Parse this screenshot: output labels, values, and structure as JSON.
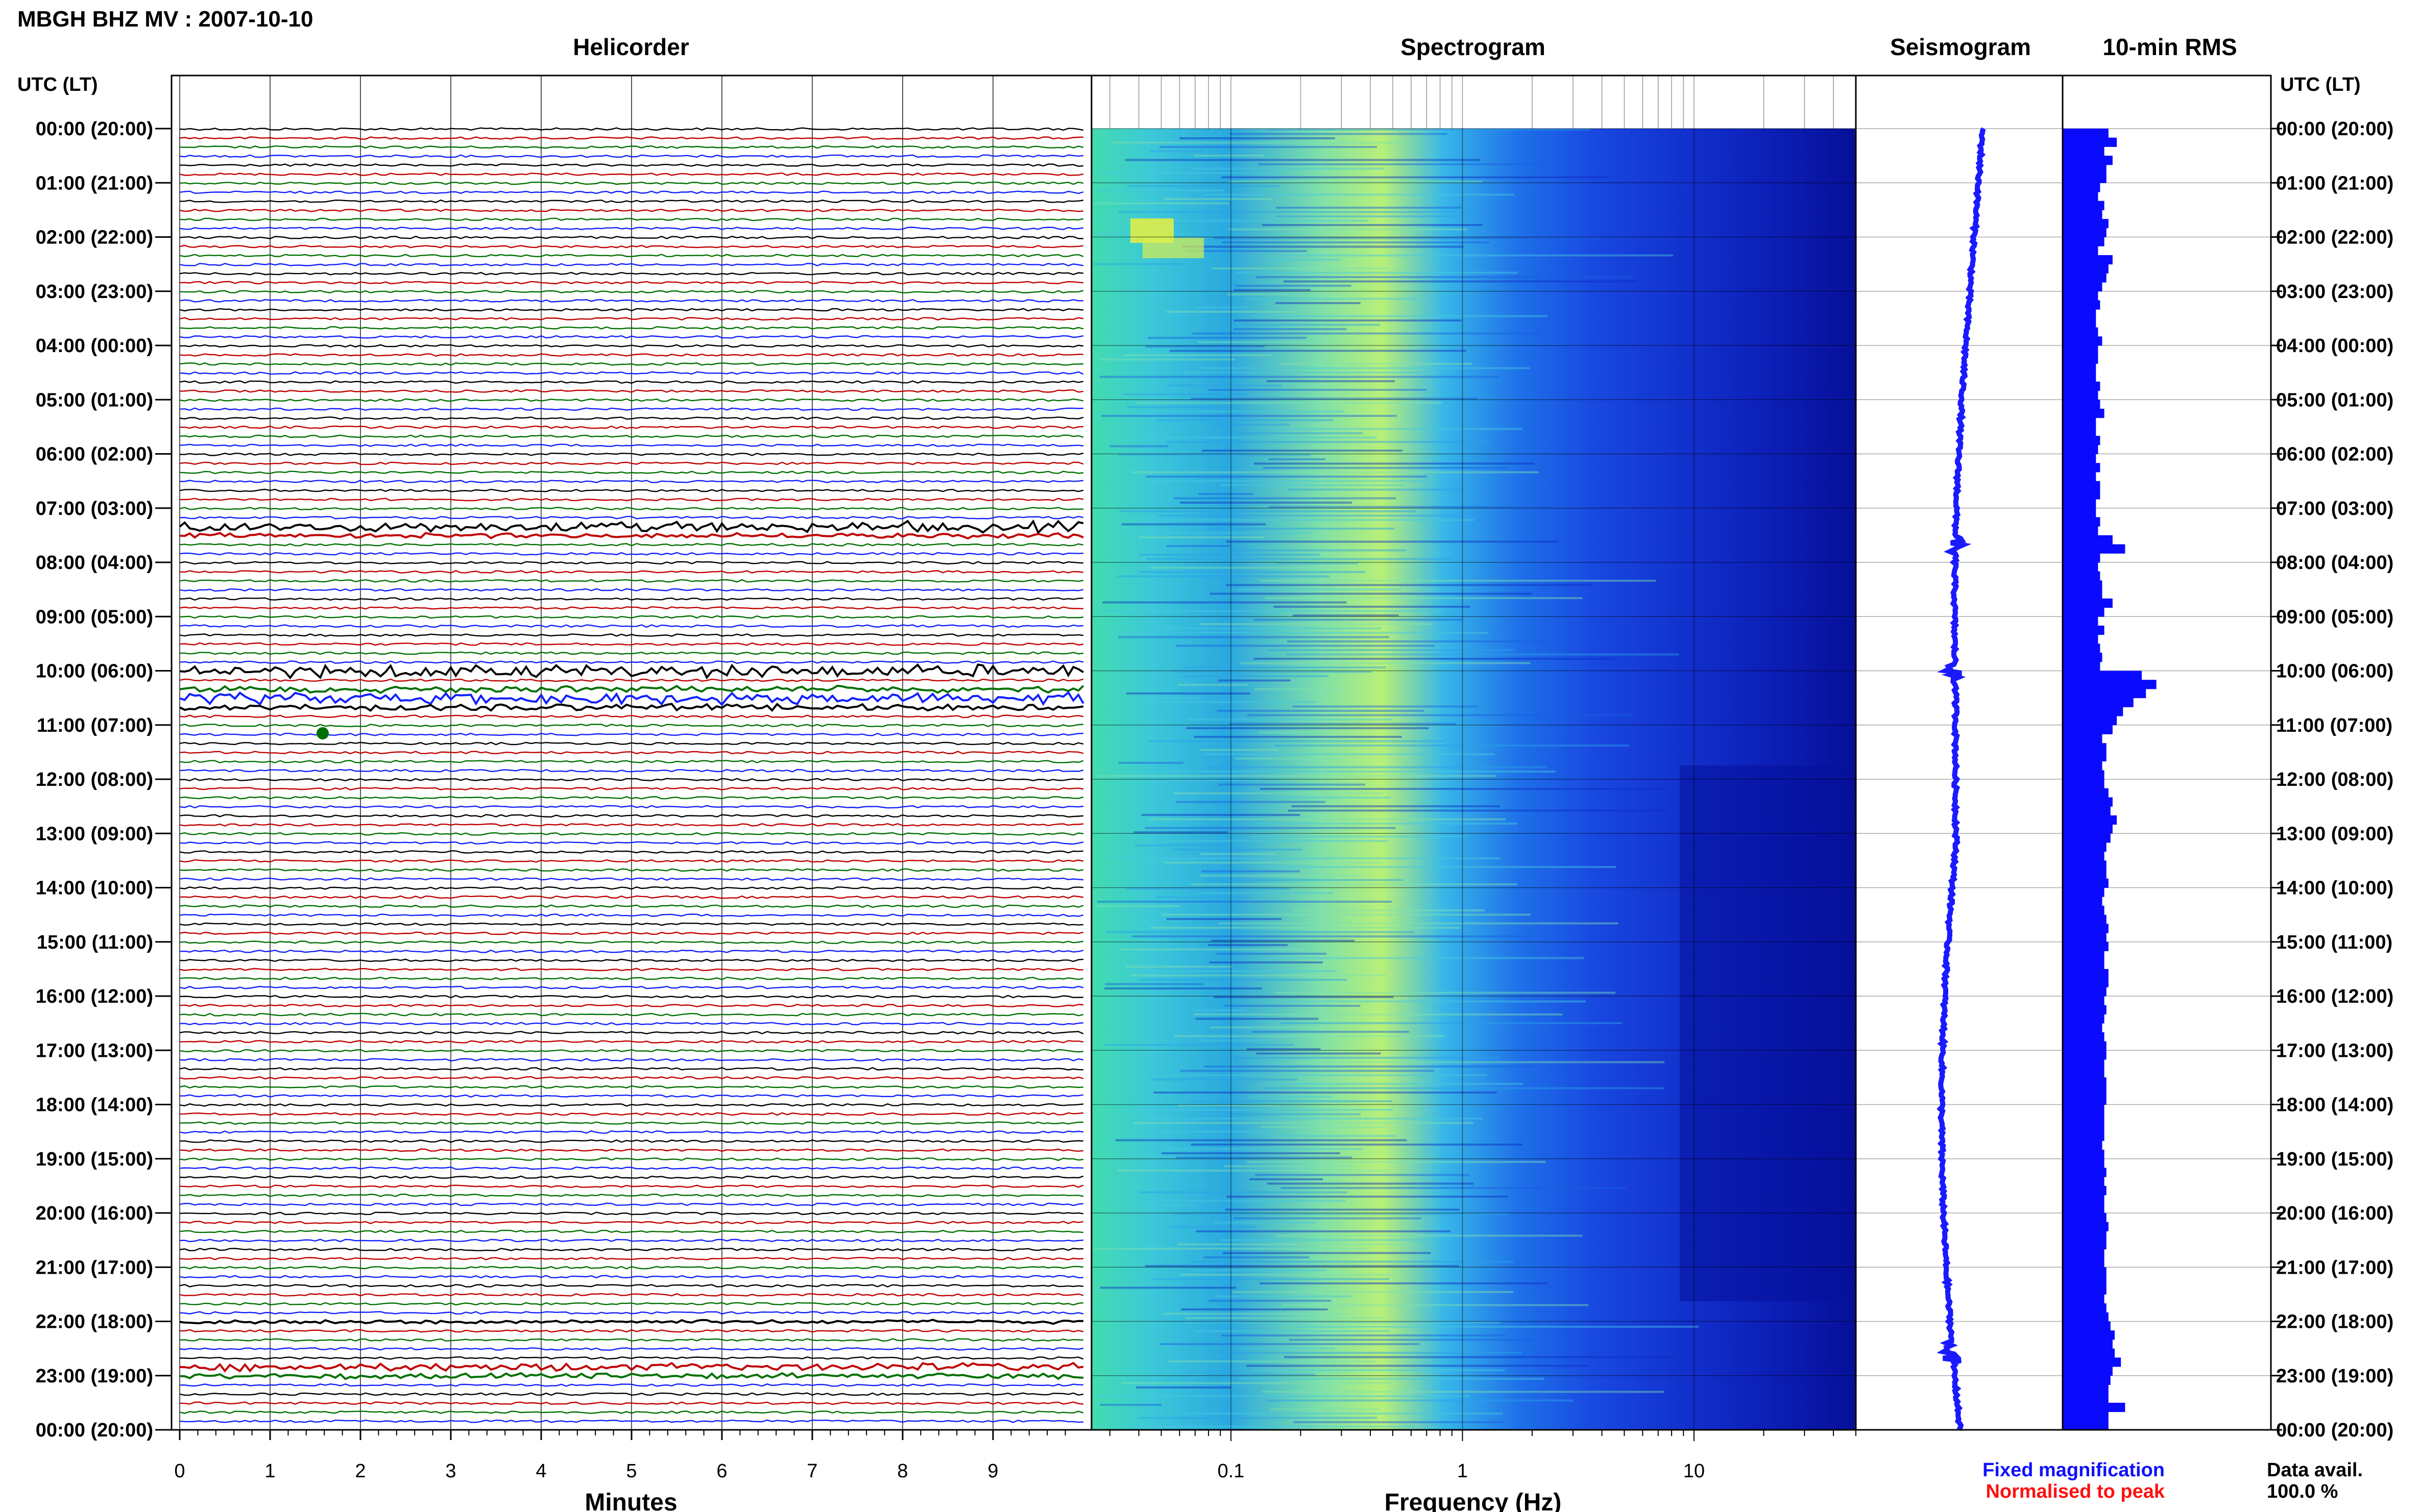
{
  "header": {
    "station_title": "MBGH BHZ MV : 2007-10-10",
    "utc_label_left": "UTC (LT)",
    "utc_label_right": "UTC (LT)"
  },
  "panels": {
    "helicorder": "Helicorder",
    "spectrogram": "Spectrogram",
    "seismogram": "Seismogram",
    "rms": "10-min RMS"
  },
  "axes": {
    "minutes_label": "Minutes",
    "minutes_ticks": [
      "0",
      "1",
      "2",
      "3",
      "4",
      "5",
      "6",
      "7",
      "8",
      "9"
    ],
    "freq_label": "Frequency (Hz)",
    "freq_ticks": [
      "0.1",
      "1",
      "10"
    ]
  },
  "hour_labels": [
    "00:00 (20:00)",
    "01:00 (21:00)",
    "02:00 (22:00)",
    "03:00 (23:00)",
    "04:00 (00:00)",
    "05:00 (01:00)",
    "06:00 (02:00)",
    "07:00 (03:00)",
    "08:00 (04:00)",
    "09:00 (05:00)",
    "10:00 (06:00)",
    "11:00 (07:00)",
    "12:00 (08:00)",
    "13:00 (09:00)",
    "14:00 (10:00)",
    "15:00 (11:00)",
    "16:00 (12:00)",
    "17:00 (13:00)",
    "18:00 (14:00)",
    "19:00 (15:00)",
    "20:00 (16:00)",
    "21:00 (17:00)",
    "22:00 (18:00)",
    "23:00 (19:00)",
    "00:00 (20:00)"
  ],
  "legend": {
    "fixed": "Fixed magnification",
    "normalised": "Normalised to peak",
    "fixed_color": "#1010ff",
    "normalised_color": "#ff1010"
  },
  "availability": {
    "label": "Data avail.",
    "value": "100.0 %"
  },
  "colors": {
    "trace_cycle": [
      "#000000",
      "#c00000",
      "#007000",
      "#1020ff"
    ],
    "seismogram": "#1a1aff",
    "rms": "#0a0aff"
  },
  "chart_data": [
    {
      "type": "line",
      "title": "Helicorder",
      "xlabel": "Minutes",
      "xlim": [
        0,
        10
      ],
      "ylim": [
        "00:00",
        "24:00"
      ],
      "traces_per_hour": 6,
      "trace_color_cycle": [
        "black",
        "red",
        "green",
        "blue"
      ]
    },
    {
      "type": "heatmap",
      "title": "Spectrogram",
      "xlabel": "Frequency (Hz)",
      "x_scale": "log",
      "xlim": [
        0.025,
        50
      ],
      "ylim": [
        "00:00",
        "24:00"
      ]
    },
    {
      "type": "line",
      "title": "Seismogram",
      "ylim": [
        "00:00",
        "24:00"
      ]
    },
    {
      "type": "bar",
      "title": "10-min RMS",
      "orientation": "horizontal",
      "values": [
        0.22,
        0.26,
        0.2,
        0.24,
        0.21,
        0.21,
        0.18,
        0.17,
        0.2,
        0.19,
        0.22,
        0.21,
        0.2,
        0.17,
        0.24,
        0.22,
        0.21,
        0.19,
        0.17,
        0.18,
        0.16,
        0.16,
        0.17,
        0.19,
        0.17,
        0.17,
        0.16,
        0.16,
        0.18,
        0.17,
        0.18,
        0.2,
        0.16,
        0.16,
        0.18,
        0.17,
        0.16,
        0.18,
        0.16,
        0.18,
        0.18,
        0.16,
        0.16,
        0.18,
        0.17,
        0.24,
        0.3,
        0.18,
        0.17,
        0.18,
        0.19,
        0.19,
        0.24,
        0.2,
        0.17,
        0.2,
        0.17,
        0.18,
        0.19,
        0.18,
        0.38,
        0.45,
        0.4,
        0.34,
        0.29,
        0.26,
        0.24,
        0.19,
        0.21,
        0.21,
        0.19,
        0.2,
        0.2,
        0.22,
        0.24,
        0.23,
        0.26,
        0.24,
        0.23,
        0.21,
        0.2,
        0.21,
        0.21,
        0.22,
        0.2,
        0.19,
        0.2,
        0.21,
        0.22,
        0.21,
        0.22,
        0.2,
        0.2,
        0.22,
        0.22,
        0.21,
        0.2,
        0.21,
        0.2,
        0.19,
        0.2,
        0.21,
        0.21,
        0.2,
        0.2,
        0.21,
        0.21,
        0.21,
        0.2,
        0.2,
        0.2,
        0.2,
        0.19,
        0.2,
        0.2,
        0.21,
        0.2,
        0.21,
        0.2,
        0.2,
        0.21,
        0.22,
        0.21,
        0.21,
        0.2,
        0.2,
        0.21,
        0.21,
        0.21,
        0.2,
        0.21,
        0.22,
        0.23,
        0.25,
        0.24,
        0.25,
        0.28,
        0.24,
        0.23,
        0.22,
        0.22,
        0.3,
        0.22,
        0.22
      ]
    }
  ]
}
